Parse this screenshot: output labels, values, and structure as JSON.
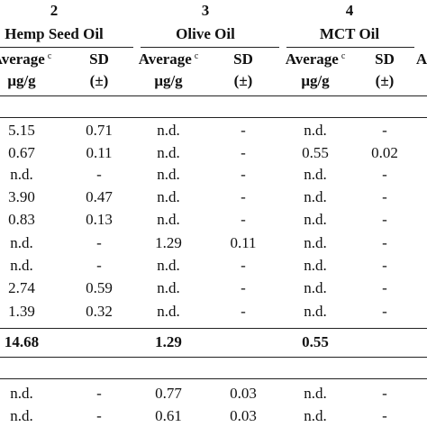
{
  "table": {
    "numbers": [
      "2",
      "3",
      "4"
    ],
    "groups": [
      "Hemp Seed Oil",
      "Olive Oil",
      "MCT Oil"
    ],
    "subheaders": [
      {
        "main": "Average",
        "sup": "c",
        "unit": "μg/g"
      },
      {
        "main": "SD",
        "unit": "(±)"
      },
      {
        "main": "Average",
        "sup": "c",
        "unit": "μg/g"
      },
      {
        "main": "SD",
        "unit": "(±)"
      },
      {
        "main": "Average",
        "sup": "c",
        "unit": "μg/g"
      },
      {
        "main": "SD",
        "unit": "(±)"
      },
      {
        "main": "A"
      }
    ],
    "rows": [
      [
        "5.15",
        "0.71",
        "n.d.",
        "-",
        "n.d.",
        "-"
      ],
      [
        "0.67",
        "0.11",
        "n.d.",
        "-",
        "0.55",
        "0.02"
      ],
      [
        "n.d.",
        "-",
        "n.d.",
        "-",
        "n.d.",
        "-"
      ],
      [
        "3.90",
        "0.47",
        "n.d.",
        "-",
        "n.d.",
        "-"
      ],
      [
        "0.83",
        "0.13",
        "n.d.",
        "-",
        "n.d.",
        "-"
      ],
      [
        "n.d.",
        "-",
        "1.29",
        "0.11",
        "n.d.",
        "-"
      ],
      [
        "n.d.",
        "-",
        "n.d.",
        "-",
        "n.d.",
        "-"
      ],
      [
        "2.74",
        "0.59",
        "n.d.",
        "-",
        "n.d.",
        "-"
      ],
      [
        "1.39",
        "0.32",
        "n.d.",
        "-",
        "n.d.",
        "-"
      ]
    ],
    "totals": [
      "14.68",
      "1.29",
      "0.55"
    ],
    "rows2": [
      [
        "n.d.",
        "-",
        "0.77",
        "0.03",
        "n.d.",
        "-"
      ],
      [
        "n.d.",
        "-",
        "0.61",
        "0.03",
        "n.d.",
        "-"
      ]
    ]
  }
}
